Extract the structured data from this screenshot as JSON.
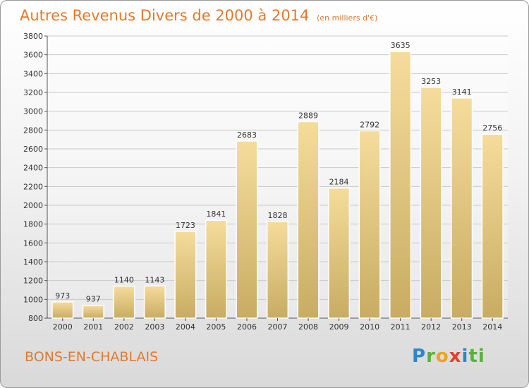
{
  "header": {
    "title": "Autres Revenus Divers de 2000 à 2014",
    "subtitle": "(en milliers d'€)"
  },
  "footer": {
    "place": "BONS-EN-CHABLAIS",
    "logo_letters": [
      "P",
      "r",
      "o",
      "x",
      "i",
      "ti"
    ]
  },
  "colors": {
    "title": "#e07a2e",
    "bar_light": "#f6dc9c",
    "bar_dark": "#c8ac62"
  },
  "chart_data": {
    "type": "bar",
    "categories": [
      "2000",
      "2001",
      "2002",
      "2003",
      "2004",
      "2005",
      "2006",
      "2007",
      "2008",
      "2009",
      "2010",
      "2011",
      "2012",
      "2013",
      "2014"
    ],
    "values": [
      973,
      937,
      1140,
      1143,
      1723,
      1841,
      2683,
      1828,
      2889,
      2184,
      2792,
      3635,
      3253,
      3141,
      2756
    ],
    "title": "Autres Revenus Divers de 2000 à 2014",
    "subtitle": "(en milliers d'€)",
    "xlabel": "",
    "ylabel": "",
    "ylim": [
      800,
      3800
    ],
    "yticks": [
      800,
      1000,
      1200,
      1400,
      1600,
      1800,
      2000,
      2200,
      2400,
      2600,
      2800,
      3000,
      3200,
      3400,
      3600,
      3800
    ],
    "grid": true,
    "data_labels": true
  }
}
